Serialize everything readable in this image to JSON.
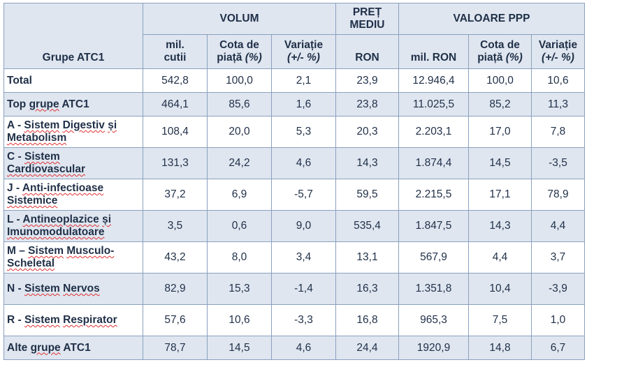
{
  "header": {
    "group_label": "Grupe ATC1",
    "volum": "VOLUM",
    "pret_line1": "PREȚ",
    "pret_line2": "MEDIU",
    "valoare": "VALOARE PPP",
    "sub": {
      "mil_cutii_1": "mil.",
      "mil_cutii_2": "cutii",
      "cota_1": "Cota de",
      "cota_2a": "piață ",
      "cota_2b": "(%)",
      "var_1": "Variație",
      "var_2": "(+/- %)",
      "ron": "RON",
      "mil_ron": "mil. RON",
      "cota2_1": "Cota de",
      "cota2_2a": "piață ",
      "cota2_2b": "(%)",
      "var2_1": "Variație",
      "var2_2": "(+/- %)"
    }
  },
  "rows": [
    {
      "label_1": "Total",
      "label_2": "",
      "v": [
        "542,8",
        "100,0",
        "2,1",
        "23,9",
        "12.946,4",
        "100,0",
        "10,6"
      ]
    },
    {
      "label_1": "Top grupe ATC1",
      "label_2": "",
      "v": [
        "464,1",
        "85,6",
        "1,6",
        "23,8",
        "11.025,5",
        "85,2",
        "11,3"
      ]
    },
    {
      "label_1": "A - Sistem Digestiv și",
      "label_2": "Metabolism",
      "v": [
        "108,4",
        "20,0",
        "5,3",
        "20,3",
        "2.203,1",
        "17,0",
        "7,8"
      ]
    },
    {
      "label_1": "C - Sistem",
      "label_2": "Cardiovascular",
      "v": [
        "131,3",
        "24,2",
        "4,6",
        "14,3",
        "1.874,4",
        "14,5",
        "-3,5"
      ]
    },
    {
      "label_1": "J - Anti-infectioase",
      "label_2": "Sistemice",
      "v": [
        "37,2",
        "6,9",
        "-5,7",
        "59,5",
        "2.215,5",
        "17,1",
        "78,9"
      ]
    },
    {
      "label_1": "L - Antineoplazice și",
      "label_2": "Imunomodulatoare",
      "v": [
        "3,5",
        "0,6",
        "9,0",
        "535,4",
        "1.847,5",
        "14,3",
        "4,4"
      ]
    },
    {
      "label_1": "M – Sistem Musculo-",
      "label_2": "Scheletal",
      "v": [
        "43,2",
        "8,0",
        "3,4",
        "13,1",
        "567,9",
        "4,4",
        "3,7"
      ]
    },
    {
      "label_1": "N - Sistem Nervos",
      "label_2": "",
      "v": [
        "82,9",
        "15,3",
        "-1,4",
        "16,3",
        "1.351,8",
        "10,4",
        "-3,9"
      ]
    },
    {
      "label_1": "R - Sistem Respirator",
      "label_2": "",
      "v": [
        "57,6",
        "10,6",
        "-3,3",
        "16,8",
        "965,3",
        "7,5",
        "1,0"
      ]
    },
    {
      "label_1": "Alte grupe ATC1",
      "label_2": "",
      "v": [
        "78,7",
        "14,5",
        "4,6",
        "24,4",
        "1920,9",
        "14,8",
        "6,7"
      ]
    }
  ]
}
